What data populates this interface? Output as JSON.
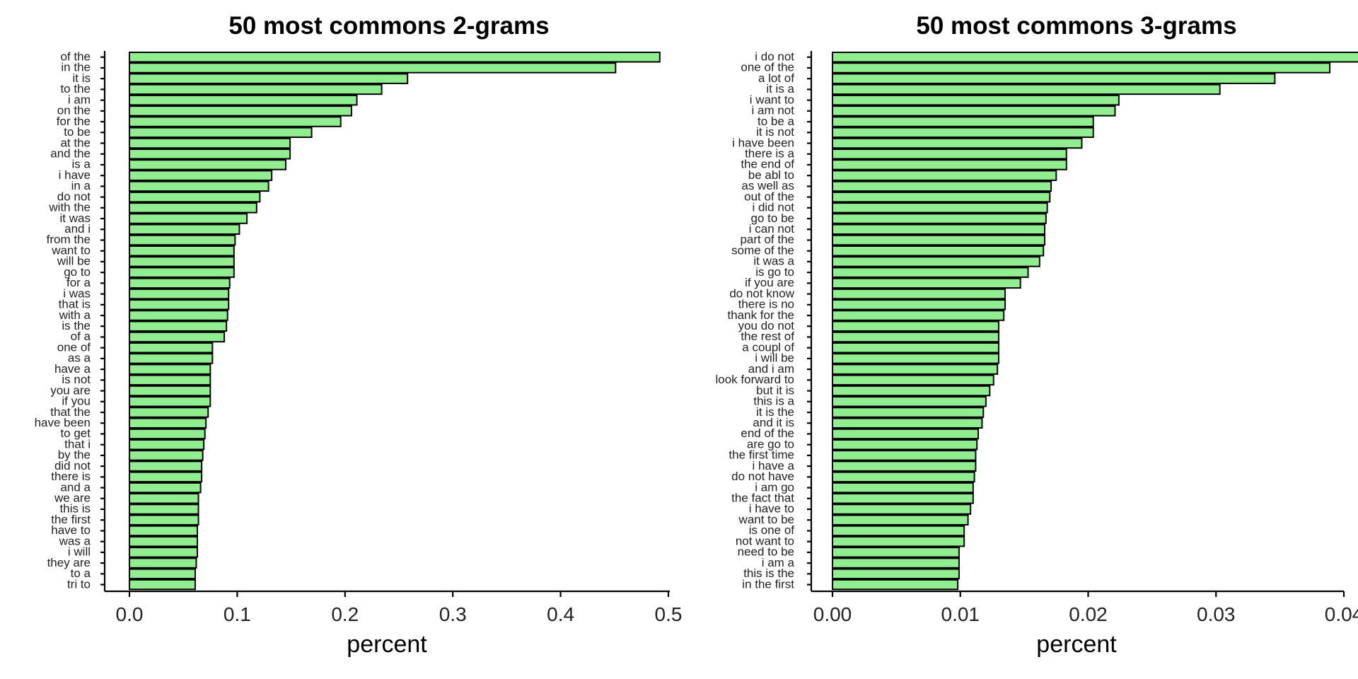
{
  "chart_data": [
    {
      "type": "bar",
      "orientation": "horizontal",
      "title": "50 most commons 2-grams",
      "xlabel": "percent",
      "ylabel": "",
      "xlim": [
        0,
        0.5
      ],
      "xticks": [
        "0.0",
        "0.1",
        "0.2",
        "0.3",
        "0.4",
        "0.5"
      ],
      "grid": false,
      "bar_color": "#90ee90",
      "categories": [
        "of the",
        "in the",
        "it is",
        "to the",
        "i am",
        "on the",
        "for the",
        "to be",
        "at the",
        "and the",
        "is a",
        "i have",
        "in a",
        "do not",
        "with the",
        "it was",
        "and i",
        "from the",
        "want to",
        "will be",
        "go to",
        "for a",
        "i was",
        "that is",
        "with a",
        "is the",
        "of a",
        "one of",
        "as a",
        "have a",
        "is not",
        "you are",
        "if you",
        "that the",
        "have been",
        "to get",
        "that i",
        "by the",
        "did not",
        "there is",
        "and a",
        "we are",
        "this is",
        "the first",
        "have to",
        "was a",
        "i will",
        "they are",
        "to a",
        "tri to"
      ],
      "values": [
        0.492,
        0.451,
        0.258,
        0.234,
        0.211,
        0.206,
        0.196,
        0.169,
        0.149,
        0.149,
        0.145,
        0.132,
        0.129,
        0.121,
        0.118,
        0.109,
        0.102,
        0.098,
        0.097,
        0.097,
        0.097,
        0.093,
        0.092,
        0.092,
        0.091,
        0.09,
        0.088,
        0.077,
        0.077,
        0.075,
        0.075,
        0.075,
        0.075,
        0.073,
        0.071,
        0.07,
        0.069,
        0.068,
        0.067,
        0.067,
        0.066,
        0.064,
        0.064,
        0.064,
        0.063,
        0.063,
        0.063,
        0.062,
        0.061,
        0.061
      ]
    },
    {
      "type": "bar",
      "orientation": "horizontal",
      "title": "50 most commons 3-grams",
      "xlabel": "percent",
      "ylabel": "",
      "xlim": [
        0,
        0.044
      ],
      "xticks": [
        "0.00",
        "0.01",
        "0.02",
        "0.03",
        "0.04"
      ],
      "grid": false,
      "bar_color": "#90ee90",
      "categories": [
        "i do not",
        "one of the",
        "a lot of",
        "it is a",
        "i want to",
        "i am not",
        "to be a",
        "it is not",
        "i have been",
        "there is a",
        "the end of",
        "be abl to",
        "as well as",
        "out of the",
        "i did not",
        "go to be",
        "i can not",
        "part of the",
        "some of the",
        "it was a",
        "is go to",
        "if you are",
        "do not know",
        "there is no",
        "thank for the",
        "you do not",
        "the rest of",
        "a coupl of",
        "i will be",
        "and i am",
        "look forward to",
        "but it is",
        "this is a",
        "it is the",
        "and it is",
        "end of the",
        "are go to",
        "the first time",
        "i have a",
        "do not have",
        "i am go",
        "the fact that",
        "i have to",
        "want to be",
        "is one of",
        "not want to",
        "need to be",
        "i am a",
        "this is the",
        "in the first"
      ],
      "values": [
        0.0421,
        0.0389,
        0.0346,
        0.0303,
        0.0224,
        0.0221,
        0.0204,
        0.0204,
        0.0195,
        0.0183,
        0.0183,
        0.0175,
        0.0171,
        0.017,
        0.0168,
        0.0167,
        0.0166,
        0.0166,
        0.0165,
        0.0162,
        0.0153,
        0.0147,
        0.0135,
        0.0135,
        0.0134,
        0.013,
        0.013,
        0.013,
        0.013,
        0.0129,
        0.0126,
        0.0123,
        0.012,
        0.0118,
        0.0117,
        0.0114,
        0.0113,
        0.0112,
        0.0112,
        0.0111,
        0.011,
        0.011,
        0.0108,
        0.0106,
        0.0103,
        0.0103,
        0.0099,
        0.0099,
        0.0099,
        0.0098
      ]
    }
  ]
}
